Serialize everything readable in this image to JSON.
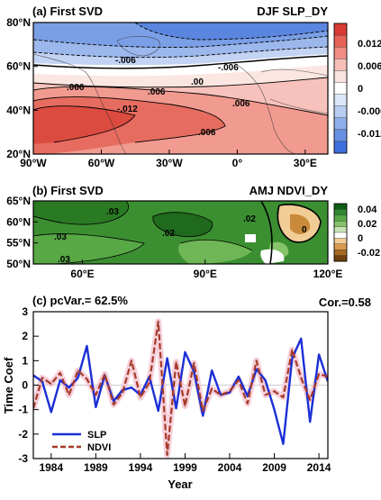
{
  "chart_data": [
    {
      "type": "heatmap",
      "panel_label": "(a) First SVD",
      "title": "DJF SLP_DY",
      "x_ticks": [
        "90°W",
        "60°W",
        "30°W",
        "0°",
        "30°E"
      ],
      "y_ticks": [
        "20°N",
        "40°N",
        "60°N",
        "80°N"
      ],
      "xlim": [
        -90,
        40
      ],
      "ylim": [
        20,
        80
      ],
      "contour_labels": [
        "-.006",
        "-.006",
        ".00",
        ".006",
        ".006",
        "-.012",
        ".006",
        ".006"
      ],
      "colorbar": {
        "ticks": [
          "0.012",
          "0.006",
          "0",
          "-0.006",
          "-0.012"
        ],
        "colors": [
          "#d93a34",
          "#e66257",
          "#f08d84",
          "#f7bfb8",
          "#fbe3df",
          "#ffffff",
          "#dbe6f8",
          "#b8cdf2",
          "#8faeea",
          "#6890e2",
          "#3f6fdd"
        ]
      },
      "colors": {
        "positive": "#e4534c",
        "negative": "#6d97e3"
      }
    },
    {
      "type": "heatmap",
      "panel_label": "(b) First SVD",
      "title": "AMJ NDVI_DY",
      "x_ticks": [
        "60°E",
        "90°E",
        "120°E"
      ],
      "y_ticks": [
        "50°N",
        "55°N",
        "60°N",
        "65°N"
      ],
      "xlim": [
        48,
        120
      ],
      "ylim": [
        50,
        65
      ],
      "contour_labels": [
        ".03",
        ".03",
        ".03",
        ".02",
        ".02",
        "0"
      ],
      "colorbar": {
        "ticks": [
          "0.04",
          "0.02",
          "0",
          "-0.02"
        ],
        "colors": [
          "#0b5d17",
          "#2f8a2d",
          "#57a843",
          "#86c46a",
          "#c7e3b3",
          "#ffffff",
          "#f2cc95",
          "#d99a4d",
          "#a86a1f",
          "#6e3f0c"
        ]
      },
      "colors": {
        "positive": "#3b8f31",
        "negative": "#c98a3b"
      }
    },
    {
      "type": "line",
      "panel_label": "(c) pcVar.= 62.5%",
      "annotation": "Cor.=0.58",
      "xlabel": "Year",
      "ylabel": "Time Coef",
      "xlim": [
        1982,
        2015
      ],
      "ylim": [
        -3,
        3
      ],
      "x_ticks": [
        "1984",
        "1989",
        "1994",
        "1999",
        "2004",
        "2009",
        "2014"
      ],
      "y_ticks": [
        "-3",
        "-2",
        "-1",
        "0",
        "1",
        "2",
        "3"
      ],
      "x": [
        1982,
        1983,
        1984,
        1985,
        1986,
        1987,
        1988,
        1989,
        1990,
        1991,
        1992,
        1993,
        1994,
        1995,
        1996,
        1997,
        1998,
        1999,
        2000,
        2001,
        2002,
        2003,
        2004,
        2005,
        2006,
        2007,
        2008,
        2009,
        2010,
        2011,
        2012,
        2013,
        2014,
        2015
      ],
      "series": [
        {
          "name": "SLP",
          "color": "#1b2fd6",
          "values": [
            0.4,
            0.15,
            -1.1,
            0.2,
            -0.1,
            0.3,
            1.6,
            -0.9,
            0.4,
            -0.65,
            -0.2,
            -0.1,
            -0.4,
            0.35,
            -1.05,
            1.1,
            -0.95,
            1.35,
            0.55,
            -1.25,
            0.6,
            -0.4,
            -0.3,
            0.35,
            -0.45,
            0.65,
            0.2,
            -1.0,
            -2.4,
            1.1,
            1.9,
            -1.5,
            1.25,
            0.15
          ]
        },
        {
          "name": "NDVI",
          "color": "#a63a2a",
          "values": [
            -0.95,
            0.3,
            0.05,
            0.5,
            -0.4,
            0.6,
            0.25,
            -0.4,
            0.45,
            -0.8,
            -0.3,
            1.0,
            -0.5,
            0.1,
            2.6,
            -2.85,
            0.95,
            -0.85,
            0.9,
            -1.05,
            -0.15,
            -0.4,
            -0.25,
            0.2,
            -0.75,
            1.0,
            -0.4,
            -0.25,
            -0.5,
            1.45,
            0.3,
            -0.6,
            0.45,
            0.35
          ]
        }
      ],
      "legend": "bottom-left"
    }
  ]
}
